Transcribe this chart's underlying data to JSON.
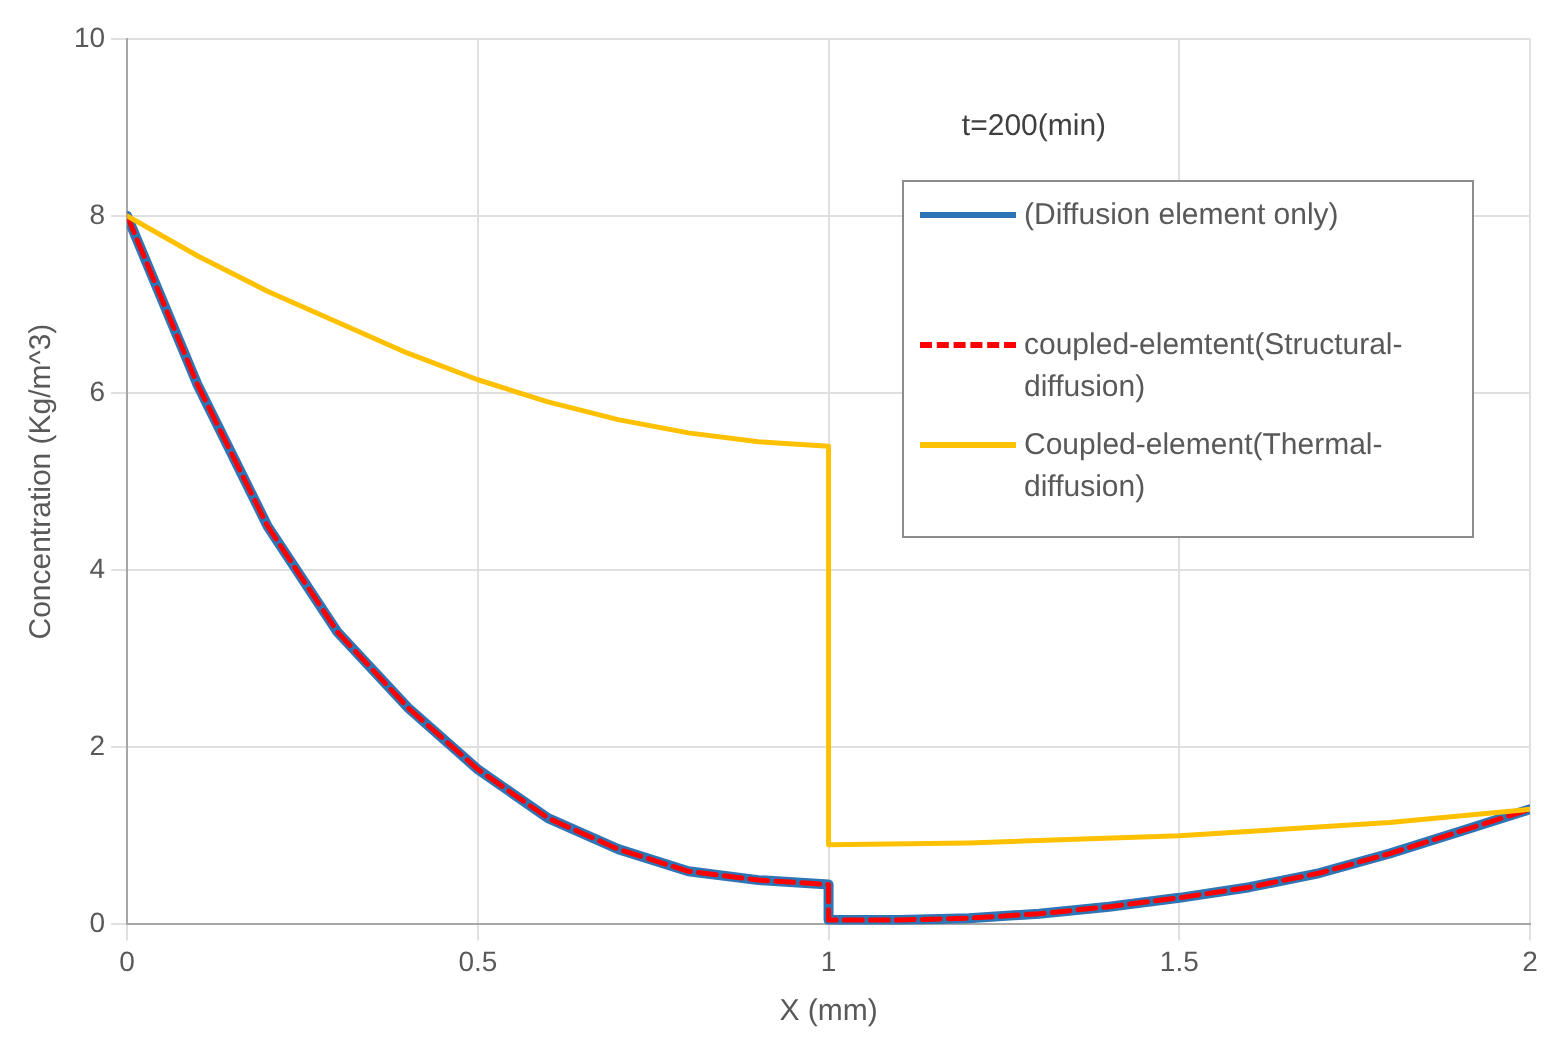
{
  "chart_data": {
    "type": "line",
    "xlabel": "X (mm)",
    "ylabel": "Concentration (Kg/m^3)",
    "annotations": [
      "t=200(min)"
    ],
    "xlim": [
      0,
      2
    ],
    "xticks": [
      0,
      0.5,
      1,
      1.5,
      2
    ],
    "ylim": [
      0,
      10
    ],
    "yticks": [
      0,
      2,
      4,
      6,
      8,
      10
    ],
    "grid": true,
    "legend": "right",
    "marker": "none",
    "series": [
      {
        "name": "(Diffusion element only)",
        "color": "#2e75b6",
        "line_style": "solid",
        "x": [
          0,
          0.1,
          0.2,
          0.3,
          0.4,
          0.5,
          0.6,
          0.7,
          0.8,
          0.9,
          1,
          1,
          1.1,
          1.2,
          1.3,
          1.4,
          1.5,
          1.6,
          1.7,
          1.8,
          1.9,
          2
        ],
        "values": [
          8,
          6.1,
          4.5,
          3.3,
          2.45,
          1.75,
          1.2,
          0.85,
          0.6,
          0.5,
          0.45,
          0.05,
          0.05,
          0.07,
          0.12,
          0.2,
          0.3,
          0.42,
          0.58,
          0.8,
          1.05,
          1.3
        ]
      },
      {
        "name": "coupled-elemtent(Structural-diffusion)",
        "color": "#ff0000",
        "line_style": "dashed",
        "x": [
          0,
          0.1,
          0.2,
          0.3,
          0.4,
          0.5,
          0.6,
          0.7,
          0.8,
          0.9,
          1,
          1,
          1.1,
          1.2,
          1.3,
          1.4,
          1.5,
          1.6,
          1.7,
          1.8,
          1.9,
          2
        ],
        "values": [
          8,
          6.1,
          4.5,
          3.3,
          2.45,
          1.75,
          1.2,
          0.85,
          0.6,
          0.5,
          0.45,
          0.05,
          0.05,
          0.07,
          0.12,
          0.2,
          0.3,
          0.42,
          0.58,
          0.8,
          1.05,
          1.3
        ]
      },
      {
        "name": "Coupled-element(Thermal-diffusion)",
        "color": "#ffc000",
        "line_style": "solid",
        "x": [
          0,
          0.1,
          0.2,
          0.3,
          0.4,
          0.5,
          0.6,
          0.7,
          0.8,
          0.9,
          1,
          1,
          1.2,
          1.5,
          1.8,
          2
        ],
        "values": [
          8,
          7.55,
          7.15,
          6.8,
          6.45,
          6.15,
          5.9,
          5.7,
          5.55,
          5.45,
          5.4,
          0.9,
          0.92,
          1,
          1.15,
          1.3
        ]
      }
    ]
  }
}
